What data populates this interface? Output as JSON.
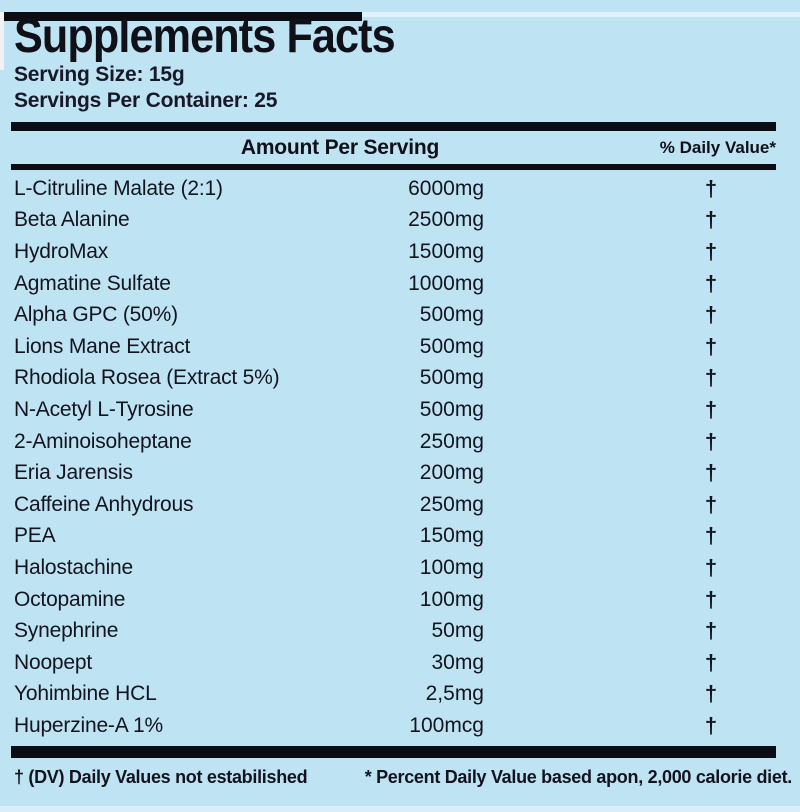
{
  "label": {
    "title": "Supplements Facts",
    "serving_size": "Serving Size: 15g",
    "servings_per_container": "Servings Per Container: 25",
    "columns": {
      "amount": "Amount Per Serving",
      "daily_value": "% Daily Value*"
    },
    "rows": [
      {
        "name": "L-Citruline Malate (2:1)",
        "amount": "6000mg",
        "dv": "†"
      },
      {
        "name": "Beta Alanine",
        "amount": "2500mg",
        "dv": "†"
      },
      {
        "name": "HydroMax",
        "amount": "1500mg",
        "dv": "†"
      },
      {
        "name": "Agmatine Sulfate",
        "amount": "1000mg",
        "dv": "†"
      },
      {
        "name": "Alpha GPC (50%)",
        "amount": "500mg",
        "dv": "†"
      },
      {
        "name": "Lions Mane Extract",
        "amount": "500mg",
        "dv": "†"
      },
      {
        "name": "Rhodiola Rosea (Extract 5%)",
        "amount": "500mg",
        "dv": "†"
      },
      {
        "name": "N-Acetyl L-Tyrosine",
        "amount": "500mg",
        "dv": "†"
      },
      {
        "name": "2-Aminoisoheptane",
        "amount": "250mg",
        "dv": "†"
      },
      {
        "name": "Eria Jarensis",
        "amount": "200mg",
        "dv": "†"
      },
      {
        "name": "Caffeine Anhydrous",
        "amount": "250mg",
        "dv": "†"
      },
      {
        "name": "PEA",
        "amount": "150mg",
        "dv": "†"
      },
      {
        "name": "Halostachine",
        "amount": "100mg",
        "dv": "†"
      },
      {
        "name": "Octopamine",
        "amount": "100mg",
        "dv": "†"
      },
      {
        "name": "Synephrine",
        "amount": "50mg",
        "dv": "†"
      },
      {
        "name": "Noopept",
        "amount": "30mg",
        "dv": "†"
      },
      {
        "name": "Yohimbine HCL",
        "amount": "2,5mg",
        "dv": "†"
      },
      {
        "name": "Huperzine-A 1%",
        "amount": "100mcg",
        "dv": "†"
      }
    ],
    "footnotes": {
      "dagger_note": "† (DV) Daily Values not estabilished",
      "percent_note": "* Percent Daily Value based apon, 2,000 calorie diet."
    },
    "colors": {
      "background": "#bee3f3",
      "ink": "#14141f",
      "bar": "#0c0c14"
    }
  }
}
